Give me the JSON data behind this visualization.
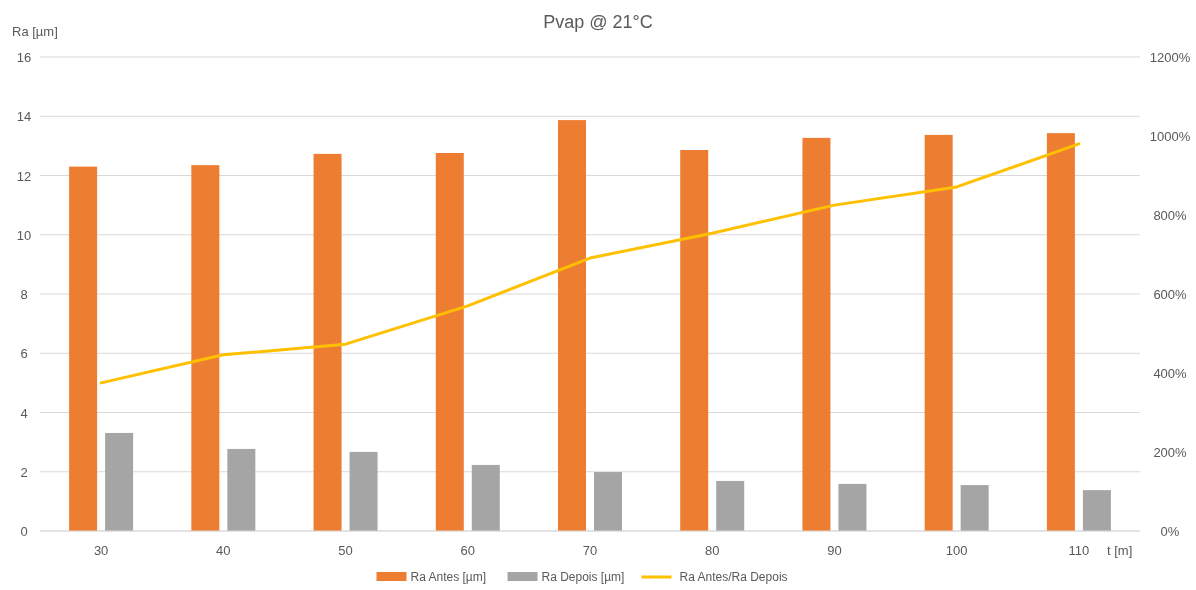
{
  "chart_data": {
    "type": "bar",
    "title": "Pvap @ 21°C",
    "ylabel": "Ra [µm]",
    "xlabel": "t [m]",
    "categories": [
      "30",
      "40",
      "50",
      "60",
      "70",
      "80",
      "90",
      "100",
      "110"
    ],
    "series": [
      {
        "name": "Ra Antes [µm]",
        "color": "#ed7d31",
        "values": [
          12.3,
          12.35,
          12.73,
          12.76,
          13.87,
          12.86,
          13.27,
          13.37,
          13.43
        ]
      },
      {
        "name": "Ra Depois [µm]",
        "color": "#a5a5a5",
        "values": [
          3.31,
          2.77,
          2.67,
          2.23,
          1.99,
          1.69,
          1.59,
          1.55,
          1.38
        ]
      },
      {
        "name": "Ra Antes/Ra Depois",
        "color": "#ffc000",
        "type": "line",
        "axis": "y2",
        "marker": "none",
        "values": [
          375,
          446,
          473,
          570,
          691,
          754,
          825,
          871,
          980
        ]
      }
    ],
    "ylim": [
      0,
      16
    ],
    "yticks": [
      0,
      2,
      4,
      6,
      8,
      10,
      12,
      14,
      16
    ],
    "y2lim": [
      0,
      1200
    ],
    "y2ticks": [
      {
        "value": 0,
        "label": "0%"
      },
      {
        "value": 200,
        "label": "200%"
      },
      {
        "value": 400,
        "label": "400%"
      },
      {
        "value": 600,
        "label": "600%"
      },
      {
        "value": 800,
        "label": "800%"
      },
      {
        "value": 1000,
        "label": "1000%"
      },
      {
        "value": 1200,
        "label": "1200%"
      }
    ],
    "grid": "y",
    "legend": "bottom"
  }
}
